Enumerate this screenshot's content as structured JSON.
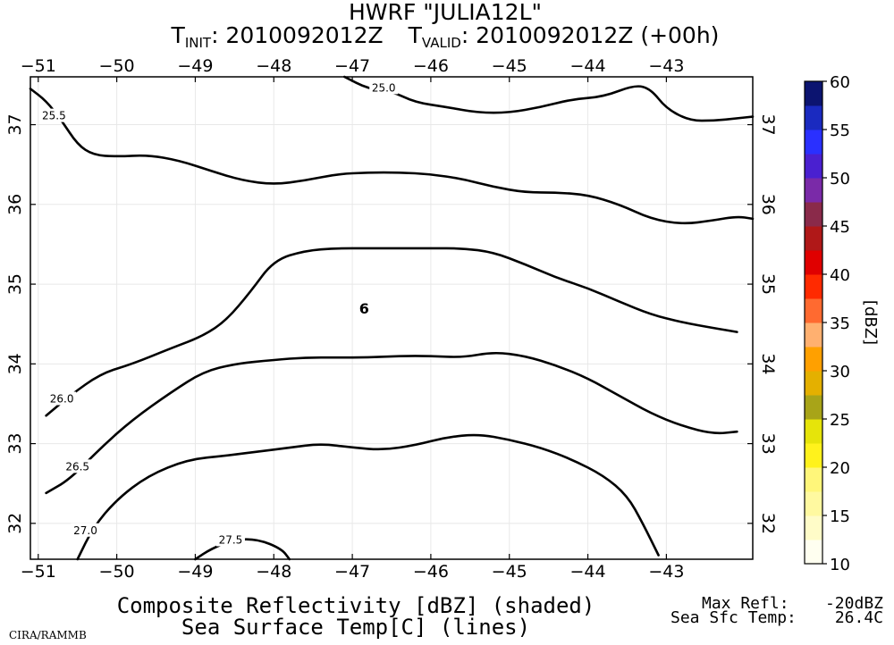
{
  "header": {
    "title": "HWRF \"JULIA12L\"",
    "t_init_prefix": "T",
    "t_init_sub": "INIT",
    "t_init_value": ": 2010092012Z",
    "t_valid_prefix": "T",
    "t_valid_sub": "VALID",
    "t_valid_value": ": 2010092012Z (+00h)"
  },
  "footer": {
    "line1": "Composite Reflectivity [dBZ] (shaded)",
    "line2": "Sea Surface Temp[C] (lines)",
    "max_refl_label": "Max Refl:",
    "max_refl_value": "-20dBZ",
    "sst_label": "Sea Sfc Temp:",
    "sst_value": "26.4C",
    "credit": "CIRA/RAMMB"
  },
  "chart_data": {
    "type": "contour",
    "title": "HWRF \"JULIA12L\"",
    "fields": {
      "shaded": "Composite Reflectivity [dBZ]",
      "lines": "Sea Surface Temp [C]"
    },
    "xlim": [
      -51.1,
      -41.9
    ],
    "ylim": [
      31.55,
      37.6
    ],
    "x_ticks": [
      -51,
      -50,
      -49,
      -48,
      -47,
      -46,
      -45,
      -44,
      -43
    ],
    "y_ticks": [
      32,
      33,
      34,
      35,
      36,
      37
    ],
    "storm_symbol": {
      "glyph": "6",
      "lon": -46.85,
      "lat": 34.7,
      "color": "#e00000"
    },
    "colorbar": {
      "label": "[dBZ]",
      "ticks": [
        10,
        15,
        20,
        25,
        30,
        35,
        40,
        45,
        50,
        55,
        60
      ],
      "min": 10,
      "max": 60,
      "colors": [
        {
          "from": 10,
          "to": 12.5,
          "color": "#fffff0"
        },
        {
          "from": 12.5,
          "to": 15,
          "color": "#fffcc8"
        },
        {
          "from": 15,
          "to": 17.5,
          "color": "#fff9a0"
        },
        {
          "from": 17.5,
          "to": 20,
          "color": "#fff67a"
        },
        {
          "from": 20,
          "to": 22.5,
          "color": "#fff21c"
        },
        {
          "from": 22.5,
          "to": 25,
          "color": "#e6e40a"
        },
        {
          "from": 25,
          "to": 27.5,
          "color": "#a8a418"
        },
        {
          "from": 27.5,
          "to": 30,
          "color": "#e4b000"
        },
        {
          "from": 30,
          "to": 32.5,
          "color": "#ffa000"
        },
        {
          "from": 32.5,
          "to": 35,
          "color": "#ffb070"
        },
        {
          "from": 35,
          "to": 37.5,
          "color": "#ff6a30"
        },
        {
          "from": 37.5,
          "to": 40,
          "color": "#ff2a00"
        },
        {
          "from": 40,
          "to": 42.5,
          "color": "#e00000"
        },
        {
          "from": 42.5,
          "to": 45,
          "color": "#b01818"
        },
        {
          "from": 45,
          "to": 47.5,
          "color": "#8a2a4a"
        },
        {
          "from": 47.5,
          "to": 50,
          "color": "#7a2aa8"
        },
        {
          "from": 50,
          "to": 52.5,
          "color": "#4a20d0"
        },
        {
          "from": 52.5,
          "to": 55,
          "color": "#2a30ff"
        },
        {
          "from": 55,
          "to": 57.5,
          "color": "#1a2ac0"
        },
        {
          "from": 57.5,
          "to": 60,
          "color": "#0c1470"
        }
      ]
    },
    "contours": [
      {
        "level": 25.0,
        "label": "25.0",
        "label_at": [
          -46.6,
          37.45
        ],
        "points": [
          [
            -47.1,
            37.6
          ],
          [
            -46.8,
            37.45
          ],
          [
            -46.5,
            37.42
          ],
          [
            -46.2,
            37.28
          ],
          [
            -45.8,
            37.22
          ],
          [
            -45.4,
            37.15
          ],
          [
            -45.0,
            37.15
          ],
          [
            -44.6,
            37.22
          ],
          [
            -44.2,
            37.32
          ],
          [
            -43.8,
            37.35
          ],
          [
            -43.4,
            37.5
          ],
          [
            -43.2,
            37.45
          ],
          [
            -43.0,
            37.2
          ],
          [
            -42.7,
            37.05
          ],
          [
            -42.4,
            37.05
          ],
          [
            -42.1,
            37.08
          ],
          [
            -41.9,
            37.1
          ]
        ]
      },
      {
        "level": 25.5,
        "label": "25.5",
        "label_at": [
          -50.8,
          37.1
        ],
        "points": [
          [
            -51.1,
            37.45
          ],
          [
            -50.9,
            37.3
          ],
          [
            -50.7,
            37.05
          ],
          [
            -50.5,
            36.75
          ],
          [
            -50.3,
            36.62
          ],
          [
            -50.0,
            36.6
          ],
          [
            -49.6,
            36.62
          ],
          [
            -49.2,
            36.55
          ],
          [
            -48.8,
            36.42
          ],
          [
            -48.4,
            36.3
          ],
          [
            -48.0,
            36.25
          ],
          [
            -47.6,
            36.3
          ],
          [
            -47.2,
            36.38
          ],
          [
            -46.8,
            36.4
          ],
          [
            -46.4,
            36.4
          ],
          [
            -46.0,
            36.38
          ],
          [
            -45.6,
            36.32
          ],
          [
            -45.2,
            36.22
          ],
          [
            -44.8,
            36.15
          ],
          [
            -44.4,
            36.15
          ],
          [
            -44.0,
            36.12
          ],
          [
            -43.6,
            36.0
          ],
          [
            -43.2,
            35.82
          ],
          [
            -42.8,
            35.75
          ],
          [
            -42.4,
            35.8
          ],
          [
            -42.1,
            35.85
          ],
          [
            -41.9,
            35.82
          ]
        ]
      },
      {
        "level": 26.0,
        "label": "26.0",
        "label_at": [
          -50.7,
          33.55
        ],
        "points": [
          [
            -50.9,
            33.35
          ],
          [
            -50.6,
            33.6
          ],
          [
            -50.2,
            33.88
          ],
          [
            -49.8,
            34.0
          ],
          [
            -49.3,
            34.2
          ],
          [
            -48.9,
            34.35
          ],
          [
            -48.6,
            34.55
          ],
          [
            -48.3,
            34.9
          ],
          [
            -48.0,
            35.3
          ],
          [
            -47.6,
            35.42
          ],
          [
            -47.2,
            35.45
          ],
          [
            -46.8,
            35.45
          ],
          [
            -46.4,
            35.45
          ],
          [
            -46.0,
            35.45
          ],
          [
            -45.6,
            35.45
          ],
          [
            -45.2,
            35.4
          ],
          [
            -44.8,
            35.25
          ],
          [
            -44.4,
            35.08
          ],
          [
            -44.0,
            34.95
          ],
          [
            -43.6,
            34.78
          ],
          [
            -43.2,
            34.62
          ],
          [
            -42.8,
            34.52
          ],
          [
            -42.4,
            34.45
          ],
          [
            -42.1,
            34.4
          ]
        ]
      },
      {
        "level": 26.5,
        "label": "26.5",
        "label_at": [
          -50.5,
          32.7
        ],
        "points": [
          [
            -50.9,
            32.38
          ],
          [
            -50.6,
            32.55
          ],
          [
            -50.2,
            32.95
          ],
          [
            -49.8,
            33.3
          ],
          [
            -49.3,
            33.65
          ],
          [
            -48.9,
            33.9
          ],
          [
            -48.5,
            34.0
          ],
          [
            -48.0,
            34.05
          ],
          [
            -47.6,
            34.08
          ],
          [
            -47.2,
            34.08
          ],
          [
            -46.8,
            34.08
          ],
          [
            -46.4,
            34.1
          ],
          [
            -46.0,
            34.1
          ],
          [
            -45.6,
            34.08
          ],
          [
            -45.2,
            34.15
          ],
          [
            -44.8,
            34.1
          ],
          [
            -44.4,
            33.98
          ],
          [
            -44.0,
            33.82
          ],
          [
            -43.6,
            33.6
          ],
          [
            -43.2,
            33.38
          ],
          [
            -42.8,
            33.22
          ],
          [
            -42.4,
            33.12
          ],
          [
            -42.1,
            33.15
          ]
        ]
      },
      {
        "level": 27.0,
        "label": "27.0",
        "label_at": [
          -50.4,
          31.9
        ],
        "points": [
          [
            -50.5,
            31.55
          ],
          [
            -50.3,
            31.95
          ],
          [
            -50.0,
            32.3
          ],
          [
            -49.6,
            32.6
          ],
          [
            -49.1,
            32.8
          ],
          [
            -48.6,
            32.85
          ],
          [
            -48.2,
            32.9
          ],
          [
            -47.8,
            32.95
          ],
          [
            -47.4,
            33.0
          ],
          [
            -47.0,
            32.95
          ],
          [
            -46.6,
            32.92
          ],
          [
            -46.2,
            32.98
          ],
          [
            -45.8,
            33.08
          ],
          [
            -45.4,
            33.12
          ],
          [
            -45.0,
            33.05
          ],
          [
            -44.6,
            32.95
          ],
          [
            -44.2,
            32.8
          ],
          [
            -43.8,
            32.6
          ],
          [
            -43.5,
            32.35
          ],
          [
            -43.3,
            32.0
          ],
          [
            -43.1,
            31.6
          ]
        ]
      },
      {
        "level": 27.5,
        "label": "27.5",
        "label_at": [
          -48.55,
          31.78
        ],
        "points": [
          [
            -49.0,
            31.55
          ],
          [
            -48.8,
            31.68
          ],
          [
            -48.5,
            31.8
          ],
          [
            -48.2,
            31.8
          ],
          [
            -47.9,
            31.68
          ],
          [
            -47.8,
            31.55
          ]
        ]
      }
    ]
  }
}
